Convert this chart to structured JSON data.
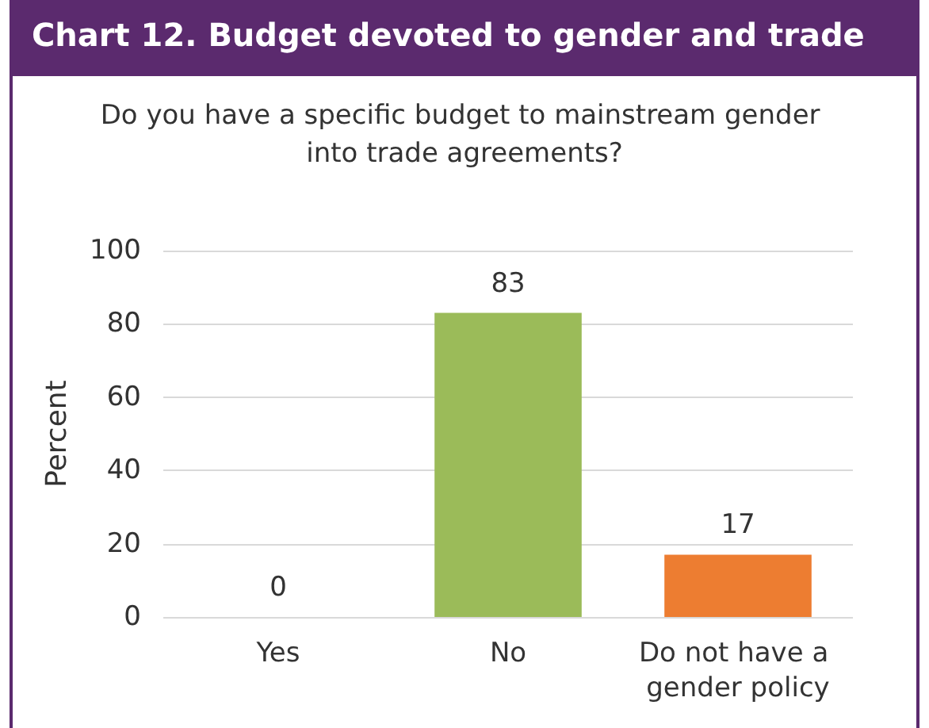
{
  "chart_data": {
    "type": "bar",
    "title": "Chart 12. Budget devoted to gender and trade",
    "subtitle": "Do you have a specific budget to mainstream gender into trade agreements?",
    "ylabel": "Percent",
    "categories": [
      "Yes",
      "No",
      "Do not have a gender policy"
    ],
    "values": [
      0,
      83,
      17
    ],
    "colors": [
      "#9bbb59",
      "#9bbb59",
      "#ed7d31"
    ],
    "ylim": [
      0,
      100
    ],
    "yticks": [
      0,
      20,
      40,
      60,
      80,
      100
    ],
    "grid": "y",
    "data_labels": true
  }
}
